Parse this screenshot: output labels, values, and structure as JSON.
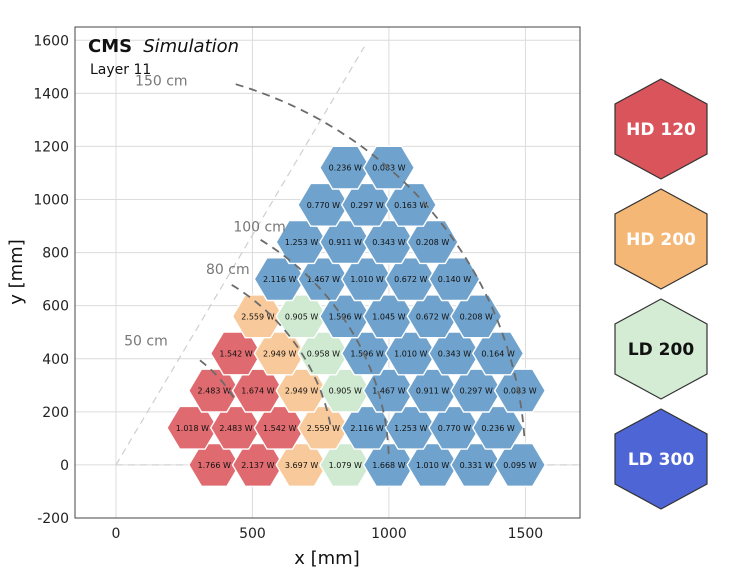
{
  "chart_data": {
    "type": "heatmap",
    "title": "CMS",
    "title_italic": "Simulation",
    "subtitle": "Layer 11",
    "xlabel": "x [mm]",
    "ylabel": "y [mm]",
    "xlim": [
      -150,
      1700
    ],
    "ylim": [
      -200,
      1650
    ],
    "xticks": [
      0,
      500,
      1000,
      1500
    ],
    "yticks": [
      -200,
      0,
      200,
      400,
      600,
      800,
      1000,
      1200,
      1400,
      1600
    ],
    "grid": true,
    "legend_position": "right",
    "categories": [
      {
        "name": "HD 120",
        "color": "#d9545b",
        "text_color": "#ffffff"
      },
      {
        "name": "HD 200",
        "color": "#f5b775",
        "text_color": "#ffffff"
      },
      {
        "name": "LD 200",
        "color": "#d3ecd3",
        "text_color": "#111111"
      },
      {
        "name": "LD 300",
        "color": "#4e65d5",
        "text_color": "#ffffff"
      }
    ],
    "cell_colors": {
      "HD 120": "#df6a6f",
      "HD 200": "#f8c99a",
      "LD 200": "#cfead0",
      "LD 300": "#6fa2cc"
    },
    "radius_labels": [
      {
        "label": "150 cm",
        "r": 1500
      },
      {
        "label": "100 cm",
        "r": 1000
      },
      {
        "label": "80 cm",
        "r": 800
      },
      {
        "label": "50 cm",
        "r": 500
      }
    ],
    "cells": [
      {
        "x": 360,
        "y": 0,
        "value": "1.766 W",
        "type": "HD 120"
      },
      {
        "x": 520,
        "y": 0,
        "value": "2.137 W",
        "type": "HD 120"
      },
      {
        "x": 680,
        "y": 0,
        "value": "3.697 W",
        "type": "HD 200"
      },
      {
        "x": 840,
        "y": 0,
        "value": "1.079 W",
        "type": "LD 200"
      },
      {
        "x": 1000,
        "y": 0,
        "value": "1.668 W",
        "type": "LD 300"
      },
      {
        "x": 1160,
        "y": 0,
        "value": "1.010 W",
        "type": "LD 300"
      },
      {
        "x": 1320,
        "y": 0,
        "value": "0.331 W",
        "type": "LD 300"
      },
      {
        "x": 1480,
        "y": 0,
        "value": "0.095 W",
        "type": "LD 300"
      },
      {
        "x": 280,
        "y": 140,
        "value": "1.018 W",
        "type": "HD 120"
      },
      {
        "x": 440,
        "y": 140,
        "value": "2.483 W",
        "type": "HD 120"
      },
      {
        "x": 600,
        "y": 140,
        "value": "1.542 W",
        "type": "HD 120"
      },
      {
        "x": 760,
        "y": 140,
        "value": "2.559 W",
        "type": "HD 200"
      },
      {
        "x": 920,
        "y": 140,
        "value": "2.116 W",
        "type": "LD 300"
      },
      {
        "x": 1080,
        "y": 140,
        "value": "1.253 W",
        "type": "LD 300"
      },
      {
        "x": 1240,
        "y": 140,
        "value": "0.770 W",
        "type": "LD 300"
      },
      {
        "x": 1400,
        "y": 140,
        "value": "0.236 W",
        "type": "LD 300"
      },
      {
        "x": 360,
        "y": 280,
        "value": "2.483 W",
        "type": "HD 120"
      },
      {
        "x": 520,
        "y": 280,
        "value": "1.674 W",
        "type": "HD 120"
      },
      {
        "x": 680,
        "y": 280,
        "value": "2.949 W",
        "type": "HD 200"
      },
      {
        "x": 840,
        "y": 280,
        "value": "0.905 W",
        "type": "LD 200"
      },
      {
        "x": 1000,
        "y": 280,
        "value": "1.467 W",
        "type": "LD 300"
      },
      {
        "x": 1160,
        "y": 280,
        "value": "0.911 W",
        "type": "LD 300"
      },
      {
        "x": 1320,
        "y": 280,
        "value": "0.297 W",
        "type": "LD 300"
      },
      {
        "x": 1480,
        "y": 280,
        "value": "0.083 W",
        "type": "LD 300"
      },
      {
        "x": 440,
        "y": 420,
        "value": "1.542 W",
        "type": "HD 120"
      },
      {
        "x": 600,
        "y": 420,
        "value": "2.949 W",
        "type": "HD 200"
      },
      {
        "x": 760,
        "y": 420,
        "value": "0.958 W",
        "type": "LD 200"
      },
      {
        "x": 920,
        "y": 420,
        "value": "1.596 W",
        "type": "LD 300"
      },
      {
        "x": 1080,
        "y": 420,
        "value": "1.010 W",
        "type": "LD 300"
      },
      {
        "x": 1240,
        "y": 420,
        "value": "0.343 W",
        "type": "LD 300"
      },
      {
        "x": 1400,
        "y": 420,
        "value": "0.164 W",
        "type": "LD 300"
      },
      {
        "x": 520,
        "y": 560,
        "value": "2.559 W",
        "type": "HD 200"
      },
      {
        "x": 680,
        "y": 560,
        "value": "0.905 W",
        "type": "LD 200"
      },
      {
        "x": 840,
        "y": 560,
        "value": "1.596 W",
        "type": "LD 300"
      },
      {
        "x": 1000,
        "y": 560,
        "value": "1.045 W",
        "type": "LD 300"
      },
      {
        "x": 1160,
        "y": 560,
        "value": "0.672 W",
        "type": "LD 300"
      },
      {
        "x": 1320,
        "y": 560,
        "value": "0.208 W",
        "type": "LD 300"
      },
      {
        "x": 600,
        "y": 700,
        "value": "2.116 W",
        "type": "LD 300"
      },
      {
        "x": 760,
        "y": 700,
        "value": "1.467 W",
        "type": "LD 300"
      },
      {
        "x": 920,
        "y": 700,
        "value": "1.010 W",
        "type": "LD 300"
      },
      {
        "x": 1080,
        "y": 700,
        "value": "0.672 W",
        "type": "LD 300"
      },
      {
        "x": 1240,
        "y": 700,
        "value": "0.140 W",
        "type": "LD 300"
      },
      {
        "x": 680,
        "y": 840,
        "value": "1.253 W",
        "type": "LD 300"
      },
      {
        "x": 840,
        "y": 840,
        "value": "0.911 W",
        "type": "LD 300"
      },
      {
        "x": 1000,
        "y": 840,
        "value": "0.343 W",
        "type": "LD 300"
      },
      {
        "x": 1160,
        "y": 840,
        "value": "0.208 W",
        "type": "LD 300"
      },
      {
        "x": 760,
        "y": 980,
        "value": "0.770 W",
        "type": "LD 300"
      },
      {
        "x": 920,
        "y": 980,
        "value": "0.297 W",
        "type": "LD 300"
      },
      {
        "x": 1080,
        "y": 980,
        "value": "0.163 W",
        "type": "LD 300"
      },
      {
        "x": 840,
        "y": 1120,
        "value": "0.236 W",
        "type": "LD 300"
      },
      {
        "x": 1000,
        "y": 1120,
        "value": "0.083 W",
        "type": "LD 300"
      }
    ]
  }
}
